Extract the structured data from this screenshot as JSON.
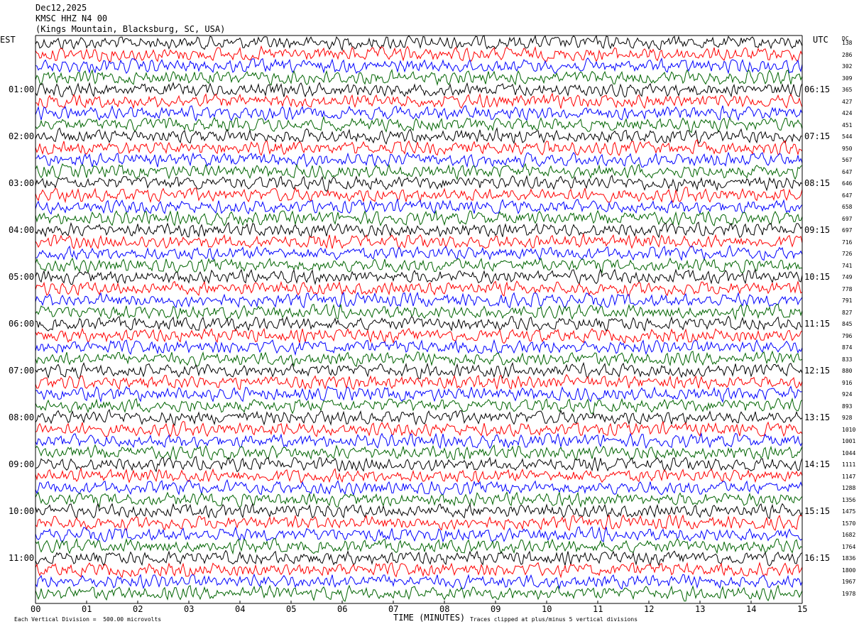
{
  "header": {
    "date": "Dec12,2025",
    "station": "KMSC HHZ N4 00",
    "location": "(Kings Mountain, Blacksburg, SC, USA)"
  },
  "axes": {
    "left_label": "EST",
    "right_label": "UTC",
    "dc_label": "DC",
    "xlabel": "TIME (MINUTES)",
    "footer_left": "Each Vertical Division =  500.00 microvolts",
    "footer_right": "Traces clipped at plus/minus 5 vertical divisions"
  },
  "colors": {
    "trace_cycle": [
      "#000000",
      "#ff0000",
      "#0000ff",
      "#006400"
    ],
    "axis": "#000000",
    "background": "#ffffff"
  },
  "chart_data": {
    "type": "line",
    "title": "KMSC HHZ N4 00",
    "xlabel": "TIME (MINUTES)",
    "xlim": [
      0,
      15
    ],
    "x_ticks": [
      "00",
      "01",
      "02",
      "03",
      "04",
      "05",
      "06",
      "07",
      "08",
      "09",
      "10",
      "11",
      "12",
      "13",
      "14",
      "15"
    ],
    "trace_interval_minutes": 15,
    "traces_per_hour": 4,
    "left_hour_labels": [
      "01:00",
      "02:00",
      "03:00",
      "04:00",
      "05:00",
      "06:00",
      "07:00",
      "08:00",
      "09:00",
      "10:00",
      "11:00"
    ],
    "right_hour_labels": [
      "06:15",
      "07:15",
      "08:15",
      "09:15",
      "10:15",
      "11:15",
      "12:15",
      "13:15",
      "14:15",
      "15:15",
      "16:15"
    ],
    "dc_offsets": [
      138,
      286,
      302,
      309,
      365,
      427,
      424,
      451,
      544,
      950,
      567,
      647,
      646,
      647,
      658,
      697,
      697,
      716,
      726,
      741,
      749,
      778,
      791,
      827,
      845,
      796,
      874,
      833,
      880,
      916,
      924,
      893,
      928,
      1010,
      1001,
      1044,
      1111,
      1147,
      1288,
      1356,
      1475,
      1570,
      1682,
      1764,
      1836,
      1800,
      1967,
      1978
    ],
    "clip_divisions": 5,
    "division_microvolts": 500
  }
}
